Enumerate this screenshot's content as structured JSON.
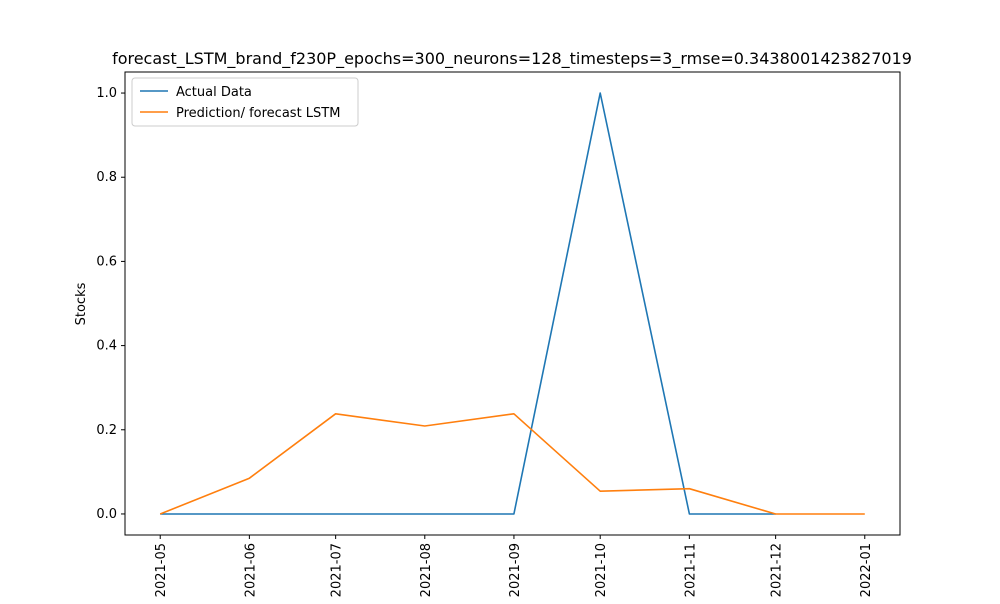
{
  "chart_data": {
    "type": "line",
    "title": "forecast_LSTM_brand_f230P_epochs=300_neurons=128_timesteps=3_rmse=0.3438001423827019",
    "xlabel": "",
    "ylabel": "Stocks",
    "x": [
      "2021-05",
      "2021-06",
      "2021-07",
      "2021-08",
      "2021-09",
      "2021-10",
      "2021-11",
      "2021-12",
      "2022-01"
    ],
    "x_tick_labels": [
      "2021-05",
      "2021-06",
      "2021-07",
      "2021-08",
      "2021-09",
      "2021-10",
      "2021-11",
      "2021-12",
      "2022-01"
    ],
    "y_tick_labels": [
      "0.0",
      "0.2",
      "0.4",
      "0.6",
      "0.8",
      "1.0"
    ],
    "y_ticks": [
      0.0,
      0.2,
      0.4,
      0.6,
      0.8,
      1.0
    ],
    "ylim": [
      -0.05,
      1.05
    ],
    "grid": false,
    "legend_position": "top-left",
    "series": [
      {
        "name": "Actual Data",
        "color": "#1f77b4",
        "x": [
          "2021-05",
          "2021-06",
          "2021-07",
          "2021-08",
          "2021-09",
          "2021-10",
          "2021-11",
          "2021-12"
        ],
        "values": [
          0.0,
          0.0,
          0.0,
          0.0,
          0.0,
          1.0,
          0.0,
          0.0
        ]
      },
      {
        "name": "Prediction/ forecast LSTM",
        "color": "#ff7f0e",
        "x": [
          "2021-05",
          "2021-06",
          "2021-07",
          "2021-08",
          "2021-09",
          "2021-10",
          "2021-11",
          "2021-12",
          "2022-01"
        ],
        "values": [
          0.0,
          0.085,
          0.238,
          0.209,
          0.238,
          0.054,
          0.06,
          0.0,
          0.0
        ]
      }
    ]
  }
}
